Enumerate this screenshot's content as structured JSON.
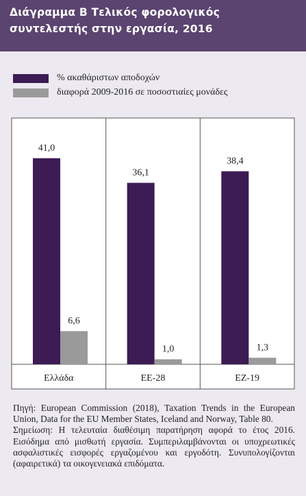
{
  "title_lines": [
    "Διάγραμμα Β  Τελικός φορολογικός",
    "συντελεστής στην εργασία, 2016"
  ],
  "colors": {
    "header": "#5b4470",
    "series1": "#3d1b55",
    "series2": "#9a9a9a"
  },
  "chart_data": {
    "type": "bar",
    "categories": [
      "Ελλάδα",
      "ΕΕ-28",
      "ΕΖ-19"
    ],
    "series": [
      {
        "name": "% ακαθάριστων αποδοχών",
        "values": [
          41.0,
          36.1,
          38.4
        ],
        "labels": [
          "41,0",
          "36,1",
          "38,4"
        ]
      },
      {
        "name": "διαφορά 2009-2016 σε ποσοστιαίες μονάδες",
        "values": [
          6.6,
          1.0,
          1.3
        ],
        "labels": [
          "6,6",
          "1,0",
          "1,3"
        ]
      }
    ],
    "legend_position": "top-left",
    "grid": false,
    "ylim": [
      0,
      49
    ]
  },
  "notes": [
    "Πηγή: European Commission (2018), Taxation Trends in the European Union, Data for the EU Member States, Iceland and Norway, Table 80.",
    "Σημείωση: Η τελευταία διαθέσιμη παρατήρηση αφορά το έτος 2016. Εισόδημα από μισθωτή εργασία. Συμπεριλαμβάνονται οι υποχρεωτικές ασφαλιστικές εισφορές εργαζομένου και εργοδότη. Συνυπολογίζονται (αφαιρετικά) τα οικογενειακά επιδόματα."
  ]
}
